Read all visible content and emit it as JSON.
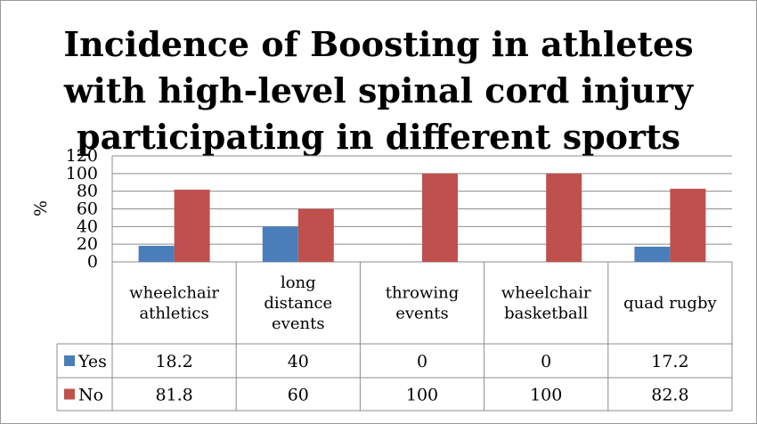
{
  "chart_data": {
    "type": "bar",
    "title_lines": [
      "Incidence of Boosting in athletes",
      "with high-level spinal cord injury",
      "participating in different sports"
    ],
    "ylabel": "%",
    "xlabel": "",
    "ylim": [
      0,
      120
    ],
    "yticks": [
      0,
      20,
      40,
      60,
      80,
      100,
      120
    ],
    "grid": true,
    "data_table": true,
    "categories": [
      [
        "wheelchair",
        "athletics"
      ],
      [
        "long",
        "distance",
        "events"
      ],
      [
        "throwing",
        "events"
      ],
      [
        "wheelchair",
        "basketball"
      ],
      [
        "quad rugby"
      ]
    ],
    "series": [
      {
        "name": "Yes",
        "color": "#4a7ebb",
        "values": [
          18.2,
          40,
          0,
          0,
          17.2
        ]
      },
      {
        "name": "No",
        "color": "#c0504d",
        "values": [
          81.8,
          60,
          100,
          100,
          82.8
        ]
      }
    ]
  }
}
